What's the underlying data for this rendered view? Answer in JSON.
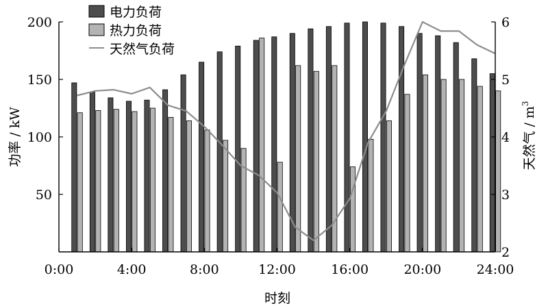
{
  "chart_data": {
    "type": "bar",
    "xlabel": "时刻",
    "ylabel": "功率 / kW",
    "y2label": "天然气 / m",
    "y2label_sup": "3",
    "xlim": [
      0,
      24
    ],
    "ylim": [
      0,
      200
    ],
    "y2lim": [
      2,
      6
    ],
    "xticks": [
      "0:00",
      "4:00",
      "8:00",
      "12:00",
      "16:00",
      "20:00",
      "24:00"
    ],
    "yticks": [
      "50",
      "100",
      "150",
      "200"
    ],
    "y2ticks": [
      "2",
      "3",
      "4",
      "5",
      "6"
    ],
    "legend_position": "top-left",
    "x": [
      1,
      2,
      3,
      4,
      5,
      6,
      7,
      8,
      9,
      10,
      11,
      12,
      13,
      14,
      15,
      16,
      17,
      18,
      19,
      20,
      21,
      22,
      23,
      24
    ],
    "series": [
      {
        "name": "电力负荷",
        "kind": "bar",
        "color": "#4d4d4d",
        "values": [
          147,
          139,
          134,
          131,
          132,
          141,
          154,
          165,
          174,
          179,
          184,
          187,
          190,
          194,
          196,
          199,
          200,
          199,
          196,
          190,
          188,
          182,
          168,
          155
        ]
      },
      {
        "name": "热力负荷",
        "kind": "bar",
        "color": "#b3b3b3",
        "values": [
          121,
          123,
          124,
          122,
          125,
          117,
          114,
          106,
          97,
          90,
          186,
          78,
          162,
          157,
          162,
          74,
          98,
          114,
          137,
          154,
          150,
          150,
          144,
          140
        ]
      },
      {
        "name": "天然气负荷",
        "kind": "line",
        "axis": "right",
        "color": "#8c8c8c",
        "values": [
          4.72,
          4.8,
          4.82,
          4.75,
          4.86,
          4.55,
          4.45,
          4.18,
          3.85,
          3.5,
          3.33,
          3.03,
          2.43,
          2.2,
          2.46,
          2.93,
          3.9,
          4.45,
          5.25,
          6.0,
          5.84,
          5.84,
          5.6,
          5.45
        ]
      }
    ]
  }
}
